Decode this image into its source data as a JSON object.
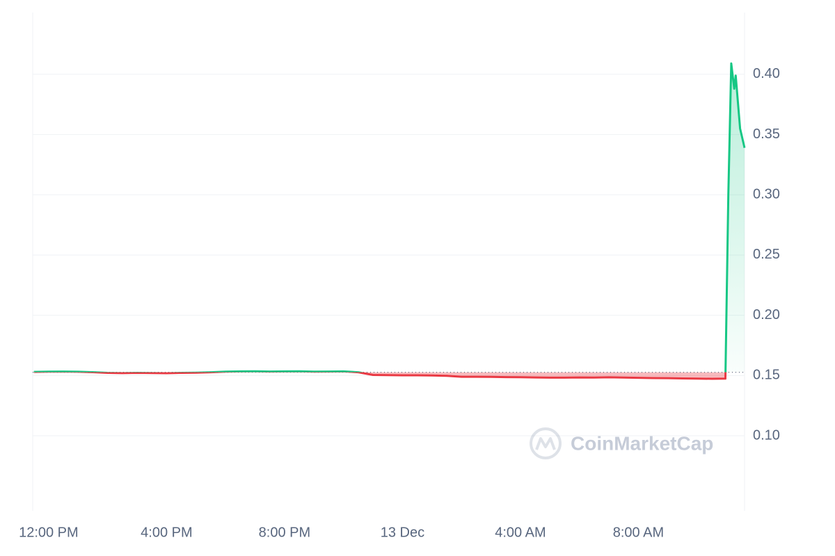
{
  "chart_data": {
    "type": "line",
    "x": [
      -0.5,
      0,
      0.5,
      1,
      1.5,
      2,
      2.5,
      3,
      3.5,
      4,
      4.5,
      5,
      5.5,
      6,
      6.5,
      7,
      7.5,
      8,
      8.5,
      9,
      9.5,
      10,
      10.5,
      11,
      11.5,
      12,
      12.5,
      13,
      13.5,
      14,
      14.5,
      15,
      15.5,
      16,
      16.5,
      17,
      17.5,
      18,
      18.5,
      19,
      19.5,
      20,
      20.5,
      21,
      21.5,
      22,
      22.5,
      22.95,
      23.05,
      23.15,
      23.25,
      23.3,
      23.45,
      23.6
    ],
    "series": [
      {
        "values": [
          0.153,
          0.1532,
          0.1533,
          0.1531,
          0.1528,
          0.1522,
          0.152,
          0.1522,
          0.1521,
          0.1519,
          0.1522,
          0.1524,
          0.1527,
          0.1532,
          0.1534,
          0.1535,
          0.1533,
          0.1534,
          0.1535,
          0.1532,
          0.1533,
          0.1534,
          0.1527,
          0.1505,
          0.1503,
          0.1502,
          0.1502,
          0.15,
          0.1497,
          0.149,
          0.149,
          0.1489,
          0.1487,
          0.1486,
          0.1484,
          0.1482,
          0.1482,
          0.1484,
          0.1483,
          0.1485,
          0.1483,
          0.1481,
          0.1479,
          0.1478,
          0.1476,
          0.1474,
          0.1473,
          0.1474,
          0.3,
          0.409,
          0.388,
          0.399,
          0.355,
          0.339
        ]
      }
    ],
    "baseline": 0.1527,
    "up_color": "#16c784",
    "down_color": "#ea3943",
    "xlim": [
      -0.54,
      23.6
    ],
    "xticks": [
      {
        "value": 0,
        "label": "12:00 PM"
      },
      {
        "value": 4,
        "label": "4:00 PM"
      },
      {
        "value": 8,
        "label": "8:00 PM"
      },
      {
        "value": 12,
        "label": "13 Dec"
      },
      {
        "value": 16,
        "label": "4:00 AM"
      },
      {
        "value": 20,
        "label": "8:00 AM"
      }
    ],
    "ylim": [
      0.0377,
      0.4513
    ],
    "yticks": [
      {
        "value": 0.1,
        "label": "0.10"
      },
      {
        "value": 0.15,
        "label": "0.15"
      },
      {
        "value": 0.2,
        "label": "0.20"
      },
      {
        "value": 0.25,
        "label": "0.25"
      },
      {
        "value": 0.3,
        "label": "0.30"
      },
      {
        "value": 0.35,
        "label": "0.35"
      },
      {
        "value": 0.4,
        "label": "0.40"
      }
    ],
    "grid": true,
    "watermark": "CoinMarketCap"
  }
}
